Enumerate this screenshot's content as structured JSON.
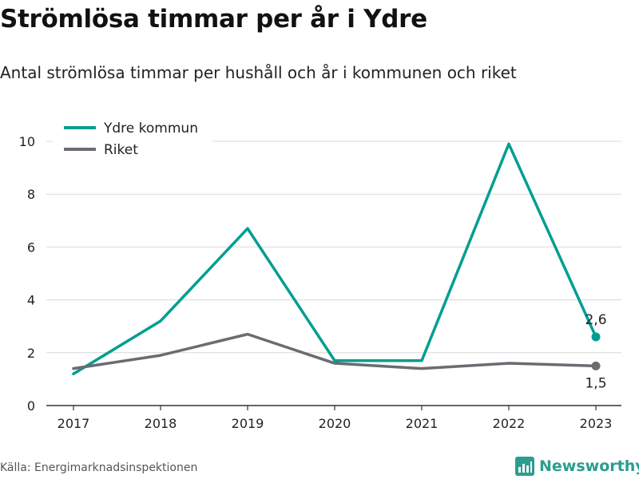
{
  "header": {
    "title": "Strömlösa timmar per år i Ydre",
    "subtitle": "Antal strömlösa timmar per hushåll och år i kommunen och riket"
  },
  "footer": {
    "source": "Källa: Energimarknadsinspektionen",
    "brand": "Newsworthy"
  },
  "colors": {
    "ydre": "#009e92",
    "riket": "#6b6b73",
    "grid": "#d9d9d9",
    "axis": "#333333",
    "brand": "#2a9d8f"
  },
  "chart_data": {
    "type": "line",
    "categories": [
      "2017",
      "2018",
      "2019",
      "2020",
      "2021",
      "2022",
      "2023"
    ],
    "series": [
      {
        "name": "Ydre kommun",
        "values": [
          1.2,
          3.2,
          6.7,
          1.7,
          1.7,
          9.9,
          2.6
        ]
      },
      {
        "name": "Riket",
        "values": [
          1.4,
          1.9,
          2.7,
          1.6,
          1.4,
          1.6,
          1.5
        ]
      }
    ],
    "end_labels": [
      "2,6",
      "1,5"
    ],
    "y_ticks": [
      "0",
      "2",
      "4",
      "6",
      "8",
      "10"
    ],
    "ylim": [
      0,
      10
    ],
    "grid": true,
    "legend": "top-left"
  }
}
